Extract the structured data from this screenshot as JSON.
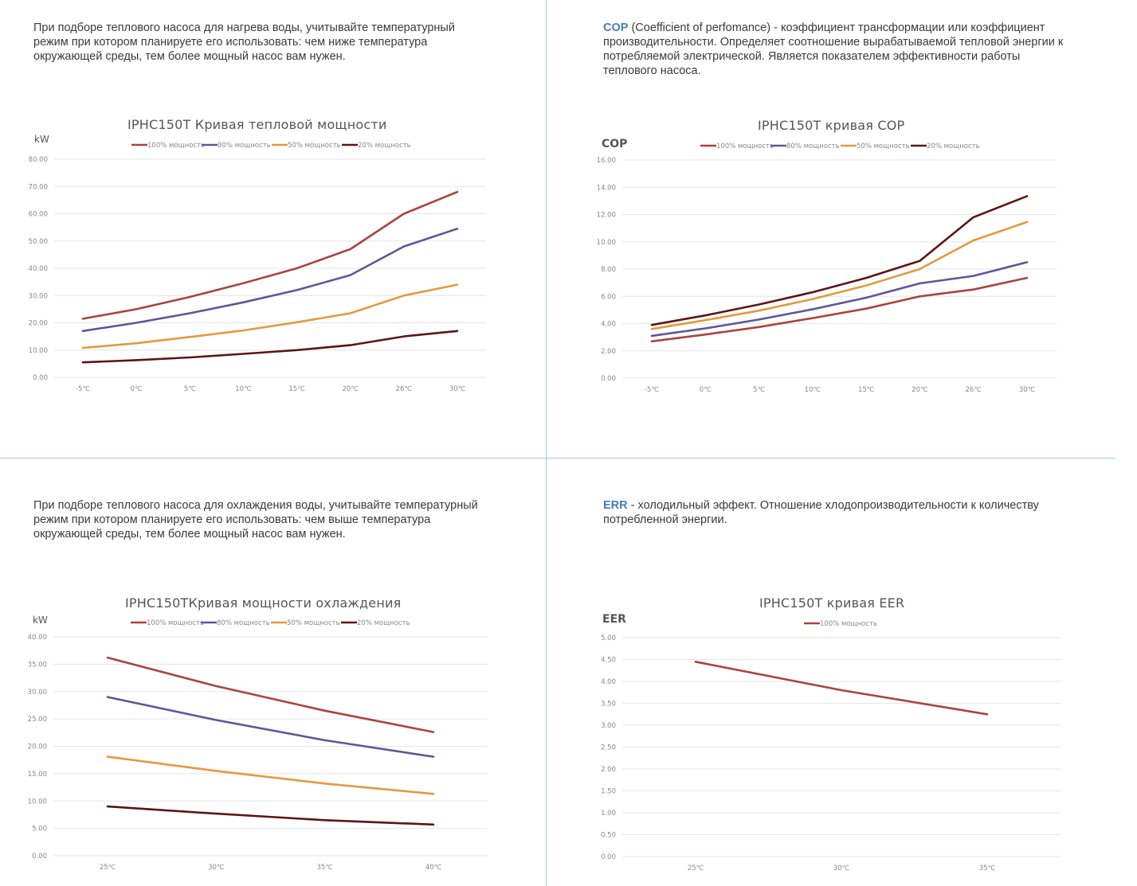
{
  "panels": [
    {
      "id": "heating",
      "description": "При подборе теплового насоса для нагрева воды, учитывайте температурный режим при котором планируете его использовать: чем ниже температура окружающей среды, тем более мощный насос вам нужен.",
      "term": "",
      "unit_label": "kW"
    },
    {
      "id": "cop",
      "term": "COP",
      "description": " (Coefficient of perfomance) - коэффициент трансформации или коэффициент производительности. Определяет соотношение вырабатываемой тепловой энергии к потребляемой электрической. Является показателем эффективности работы теплового насоса.",
      "unit_label": "COP"
    },
    {
      "id": "cooling",
      "description": "При подборе теплового насоса для охлаждения воды, учитывайте температурный режим при котором планируете его использовать: чем выше температура окружающей среды, тем более мощный насос вам нужен.",
      "term": "",
      "unit_label": "kW"
    },
    {
      "id": "eer",
      "term": "ERR",
      "description": " - холодильный эффект. Отношение хлодопроизводительности к количеству потребленной энергии.",
      "unit_label": "EER"
    }
  ],
  "colors": {
    "s100": "#a9443e",
    "s80": "#5f5697",
    "s50": "#e4993e",
    "s20": "#5a1616",
    "grid": "#e6e6e6",
    "divider": "#aac4dc"
  },
  "chart_data": [
    {
      "type": "line",
      "title": "IPHC150T  Кривая тепловой мощности",
      "ylabel": "kW",
      "ylim": [
        0,
        80
      ],
      "yticks": [
        "0.00",
        "10.00",
        "20.00",
        "30.00",
        "40.00",
        "50.00",
        "60.00",
        "70.00",
        "80.00"
      ],
      "categories": [
        "-5℃",
        "0℃",
        "5℃",
        "10℃",
        "15℃",
        "20℃",
        "26℃",
        "30℃"
      ],
      "legend_position": "top",
      "grid": true,
      "series": [
        {
          "name": "100% мощность",
          "color": "#a9443e",
          "values": [
            21.5,
            25,
            29.5,
            34.5,
            40,
            47,
            60,
            68
          ]
        },
        {
          "name": "80% мощность",
          "color": "#5f5697",
          "values": [
            17,
            20,
            23.5,
            27.5,
            32,
            37.5,
            48,
            54.5
          ]
        },
        {
          "name": "50% мощность",
          "color": "#e4993e",
          "values": [
            10.8,
            12.5,
            14.8,
            17.2,
            20.2,
            23.5,
            30,
            34
          ]
        },
        {
          "name": "20% мощность",
          "color": "#5a1616",
          "values": [
            5.5,
            6.3,
            7.3,
            8.6,
            10,
            11.8,
            15,
            17
          ]
        }
      ]
    },
    {
      "type": "line",
      "title": "IPHC150T    кривая  COP",
      "ylabel": "COP",
      "ylim": [
        0,
        16
      ],
      "yticks": [
        "0.00",
        "2.00",
        "4.00",
        "6.00",
        "8.00",
        "10.00",
        "12.00",
        "14.00",
        "16.00"
      ],
      "categories": [
        "-5℃",
        "0℃",
        "5℃",
        "10℃",
        "15℃",
        "20℃",
        "26℃",
        "30℃"
      ],
      "legend_position": "top",
      "grid": true,
      "series": [
        {
          "name": "100% мощность",
          "color": "#a9443e",
          "values": [
            2.7,
            3.2,
            3.75,
            4.4,
            5.1,
            6.0,
            6.5,
            7.35
          ]
        },
        {
          "name": "80% мощность",
          "color": "#5f5697",
          "values": [
            3.1,
            3.65,
            4.3,
            5.05,
            5.9,
            6.95,
            7.5,
            8.5
          ]
        },
        {
          "name": "50% мощность",
          "color": "#e4993e",
          "values": [
            3.6,
            4.25,
            4.95,
            5.8,
            6.8,
            8.0,
            10.1,
            11.45
          ]
        },
        {
          "name": "20% мощность",
          "color": "#5a1616",
          "values": [
            3.9,
            4.6,
            5.4,
            6.3,
            7.35,
            8.6,
            11.8,
            13.35
          ]
        }
      ]
    },
    {
      "type": "line",
      "title": "IPHC150TКривая мощности охлаждения",
      "ylabel": "kW",
      "ylim": [
        0,
        40
      ],
      "yticks": [
        "0.00",
        "5.00",
        "10.00",
        "15.00",
        "20.00",
        "25.00",
        "30.00",
        "35.00",
        "40.00"
      ],
      "categories": [
        "25℃",
        "30℃",
        "35℃",
        "40℃"
      ],
      "legend_position": "top",
      "grid": true,
      "series": [
        {
          "name": "100% мощность",
          "color": "#a9443e",
          "values": [
            36.2,
            31,
            26.5,
            22.6
          ]
        },
        {
          "name": "80% мощность",
          "color": "#5f5697",
          "values": [
            29,
            24.8,
            21.1,
            18.1
          ]
        },
        {
          "name": "50% мощность",
          "color": "#e4993e",
          "values": [
            18.1,
            15.5,
            13.2,
            11.3
          ]
        },
        {
          "name": "20% мощность",
          "color": "#5a1616",
          "values": [
            9.0,
            7.7,
            6.5,
            5.7
          ]
        }
      ]
    },
    {
      "type": "line",
      "title": "IPHC150T    кривая  EER",
      "ylabel": "EER",
      "ylim": [
        0,
        5
      ],
      "yticks": [
        "0.00",
        "0.50",
        "1.00",
        "1.50",
        "2.00",
        "2.50",
        "3.00",
        "3.50",
        "4.00",
        "4.50",
        "5.00"
      ],
      "categories": [
        "25℃",
        "30℃",
        "35℃"
      ],
      "legend_position": "top",
      "grid": true,
      "series": [
        {
          "name": "100% мощность",
          "color": "#a9443e",
          "values": [
            4.45,
            3.8,
            3.25
          ]
        }
      ]
    }
  ]
}
